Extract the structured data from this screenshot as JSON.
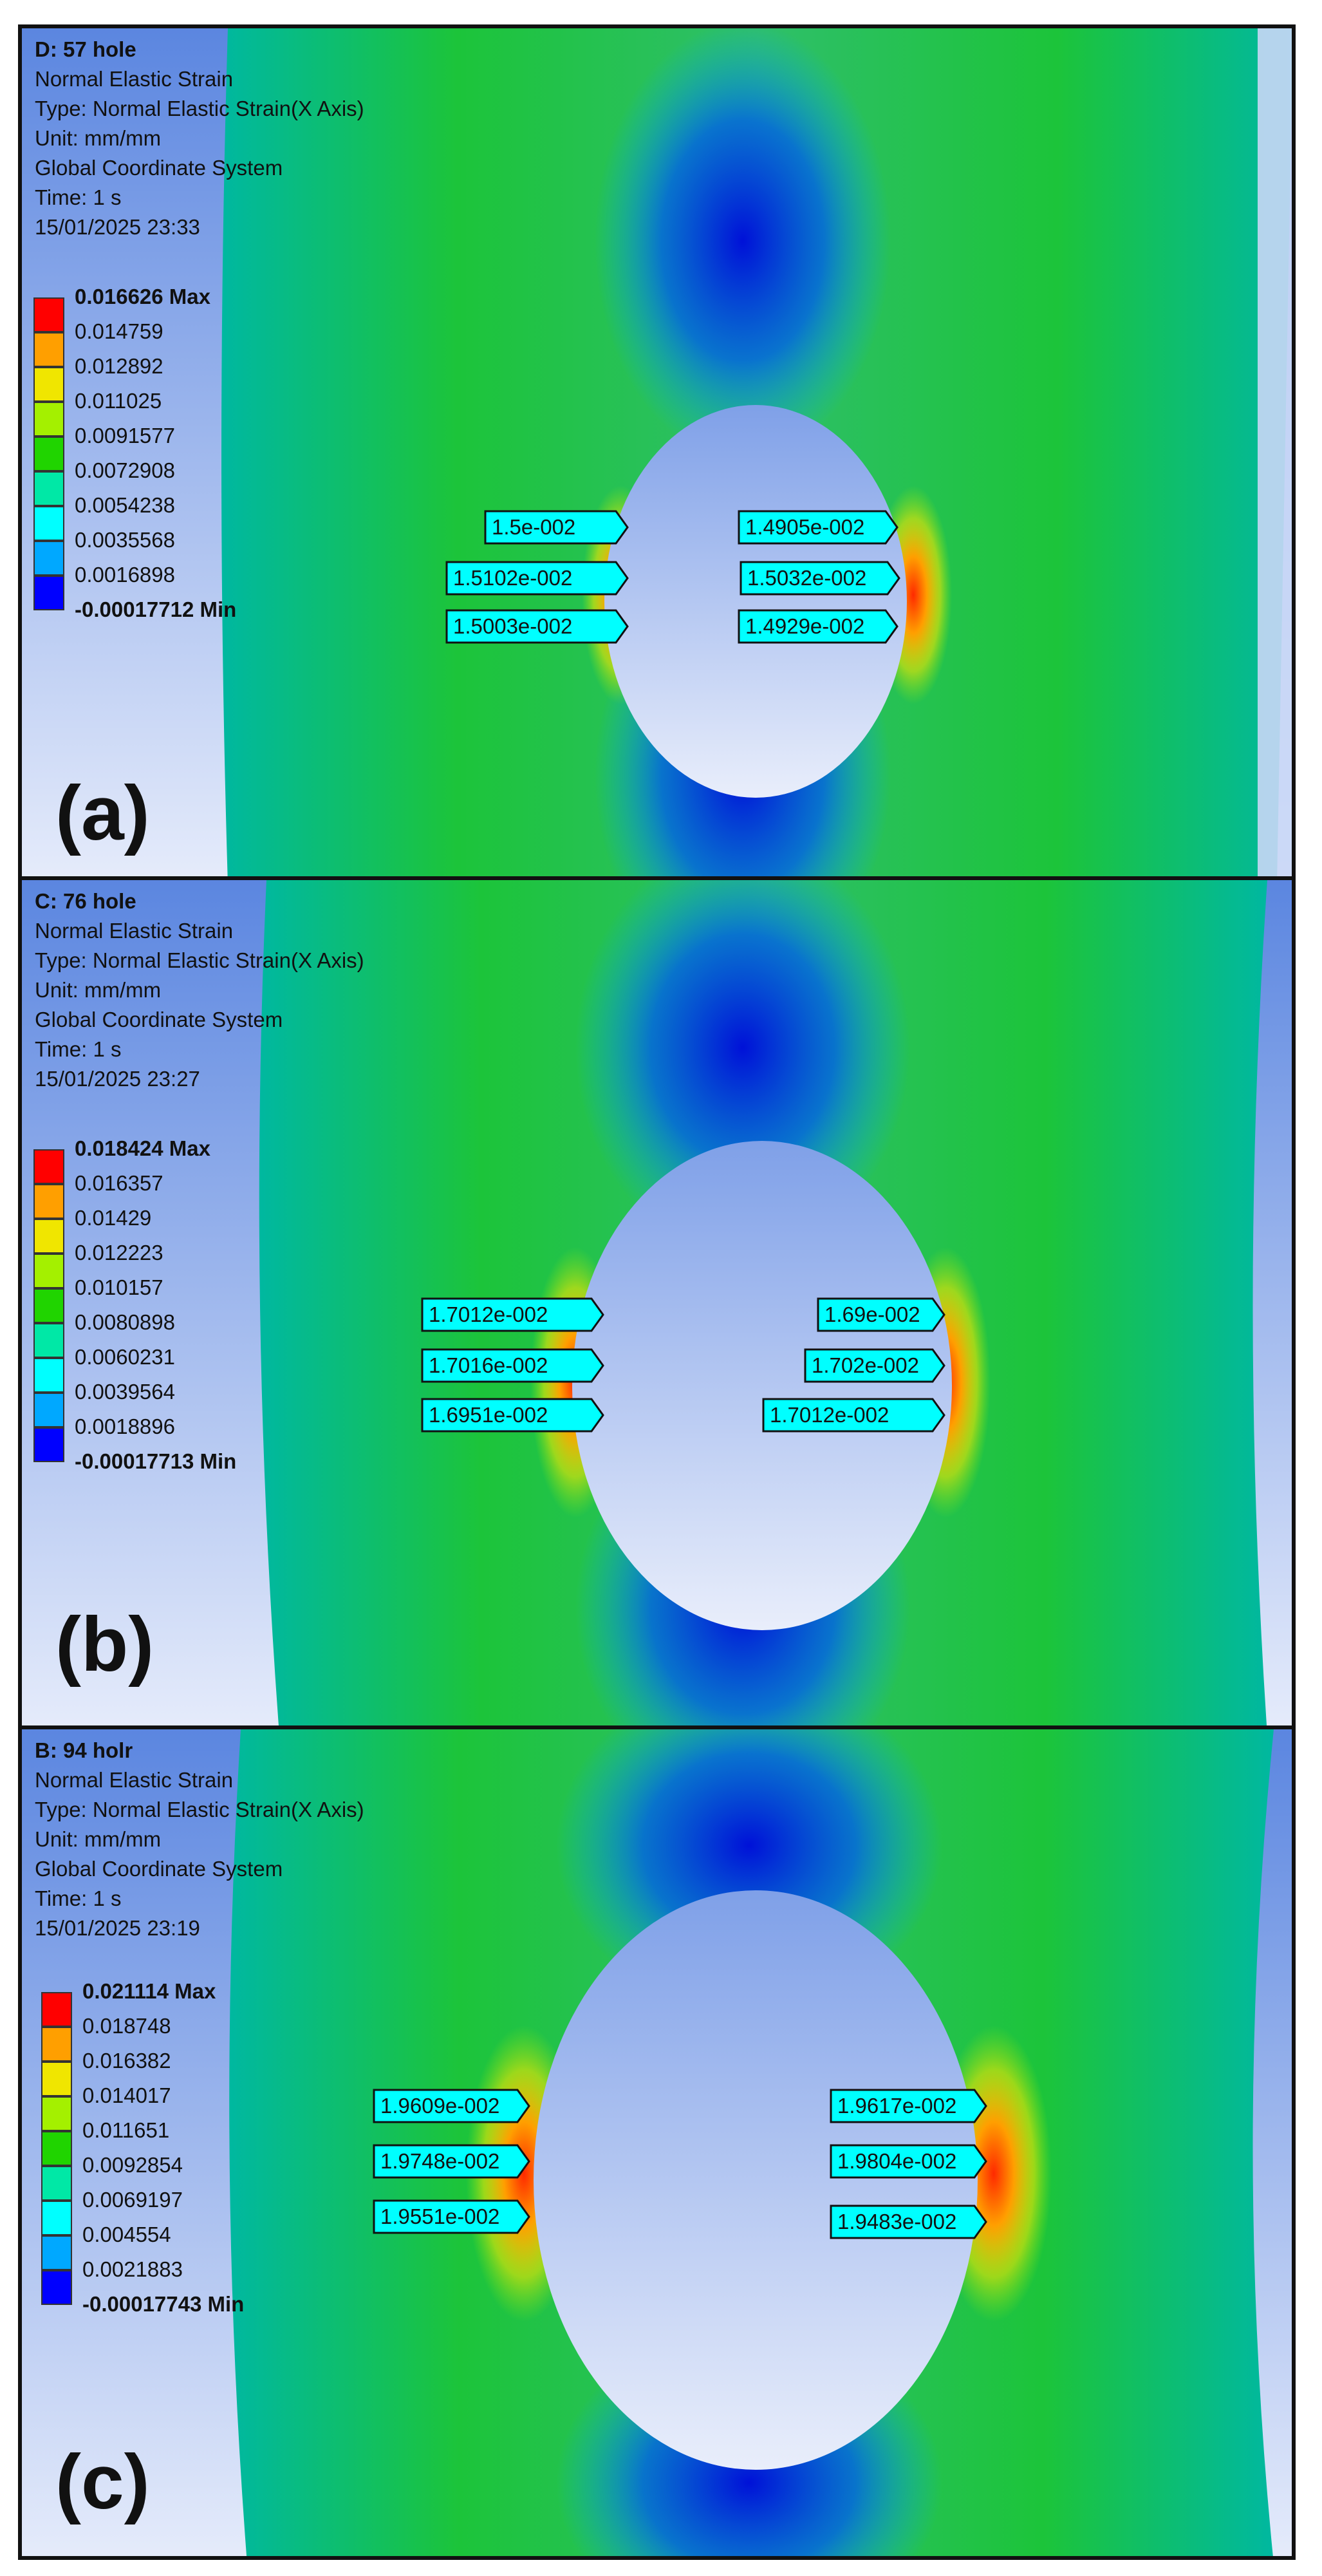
{
  "panels": [
    {
      "letter": "(a)",
      "info": {
        "title": "D: 57 hole",
        "result": "Normal Elastic Strain",
        "type": "Type: Normal Elastic Strain(X Axis)",
        "unit": "Unit: mm/mm",
        "coord": "Global Coordinate System",
        "time": "Time: 1 s",
        "datetime": "15/01/2025 23:33"
      },
      "legend": [
        "0.016626 Max",
        "0.014759",
        "0.012892",
        "0.011025",
        "0.0091577",
        "0.0072908",
        "0.0054238",
        "0.0035568",
        "0.0016898",
        "-0.00017712 Min"
      ],
      "probes_left": [
        "1.5e-002",
        "1.5102e-002",
        "1.5003e-002"
      ],
      "probes_right": [
        "1.4905e-002",
        "1.5032e-002",
        "1.4929e-002"
      ]
    },
    {
      "letter": "(b)",
      "info": {
        "title": "C: 76 hole",
        "result": "Normal Elastic Strain",
        "type": "Type: Normal Elastic Strain(X Axis)",
        "unit": "Unit: mm/mm",
        "coord": "Global Coordinate System",
        "time": "Time: 1 s",
        "datetime": "15/01/2025 23:27"
      },
      "legend": [
        "0.018424 Max",
        "0.016357",
        "0.01429",
        "0.012223",
        "0.010157",
        "0.0080898",
        "0.0060231",
        "0.0039564",
        "0.0018896",
        "-0.00017713 Min"
      ],
      "probes_left": [
        "1.7012e-002",
        "1.7016e-002",
        "1.6951e-002"
      ],
      "probes_right": [
        "1.69e-002",
        "1.702e-002",
        "1.7012e-002"
      ]
    },
    {
      "letter": "(c)",
      "info": {
        "title": "B: 94 holr",
        "result": "Normal Elastic Strain",
        "type": "Type: Normal Elastic Strain(X Axis)",
        "unit": "Unit: mm/mm",
        "coord": "Global Coordinate System",
        "time": "Time: 1 s",
        "datetime": "15/01/2025 23:19"
      },
      "legend": [
        "0.021114 Max",
        "0.018748",
        "0.016382",
        "0.014017",
        "0.011651",
        "0.0092854",
        "0.0069197",
        "0.004554",
        "0.0021883",
        "-0.00017743 Min"
      ],
      "probes_left": [
        "1.9609e-002",
        "1.9748e-002",
        "1.9551e-002"
      ],
      "probes_right": [
        "1.9617e-002",
        "1.9804e-002",
        "1.9483e-002"
      ]
    }
  ],
  "legend_colors": [
    "#ff0000",
    "#ff9f00",
    "#f0e600",
    "#a4f000",
    "#20d400",
    "#00e8a6",
    "#00ffff",
    "#00a8ff",
    "#0000ff"
  ],
  "probe_fill": "#00ffff"
}
